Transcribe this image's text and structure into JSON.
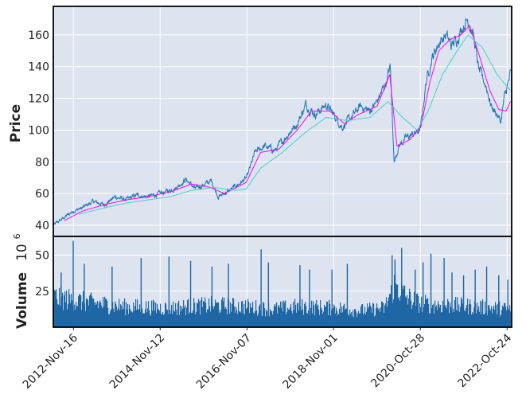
{
  "chart_data": [
    {
      "type": "line",
      "panel": "price",
      "ylabel": "Price",
      "ylim": [
        33,
        178
      ],
      "y_ticks": [
        40,
        60,
        80,
        100,
        120,
        140,
        160
      ],
      "grid": true,
      "x_start": "2012-06-01",
      "x_end": "2022-12-01",
      "series": [
        {
          "color": "#1f77b4",
          "points": [
            [
              "2012-06-01",
              40
            ],
            [
              "2012-08-15",
              44
            ],
            [
              "2012-11-16",
              49
            ],
            [
              "2013-02-01",
              51
            ],
            [
              "2013-05-01",
              55
            ],
            [
              "2013-08-01",
              53
            ],
            [
              "2013-11-01",
              58
            ],
            [
              "2014-02-01",
              56
            ],
            [
              "2014-05-01",
              59
            ],
            [
              "2014-08-01",
              58
            ],
            [
              "2014-11-12",
              60
            ],
            [
              "2015-02-01",
              62
            ],
            [
              "2015-04-01",
              64
            ],
            [
              "2015-06-15",
              69
            ],
            [
              "2015-09-01",
              63
            ],
            [
              "2015-11-01",
              65
            ],
            [
              "2016-01-15",
              68
            ],
            [
              "2016-03-15",
              58
            ],
            [
              "2016-06-15",
              62
            ],
            [
              "2016-09-01",
              66
            ],
            [
              "2016-11-07",
              70
            ],
            [
              "2017-01-15",
              86
            ],
            [
              "2017-04-01",
              90
            ],
            [
              "2017-07-01",
              87
            ],
            [
              "2017-10-01",
              96
            ],
            [
              "2018-01-01",
              104
            ],
            [
              "2018-03-15",
              116
            ],
            [
              "2018-06-01",
              110
            ],
            [
              "2018-09-01",
              116
            ],
            [
              "2018-11-01",
              110
            ],
            [
              "2019-01-15",
              102
            ],
            [
              "2019-04-01",
              108
            ],
            [
              "2019-06-15",
              115
            ],
            [
              "2019-09-01",
              112
            ],
            [
              "2019-11-01",
              118
            ],
            [
              "2020-01-15",
              130
            ],
            [
              "2020-02-20",
              140
            ],
            [
              "2020-03-23",
              80
            ],
            [
              "2020-05-01",
              90
            ],
            [
              "2020-07-01",
              95
            ],
            [
              "2020-10-28",
              100
            ],
            [
              "2020-12-15",
              130
            ],
            [
              "2021-02-01",
              145
            ],
            [
              "2021-04-01",
              155
            ],
            [
              "2021-06-01",
              160
            ],
            [
              "2021-07-15",
              153
            ],
            [
              "2021-09-01",
              158
            ],
            [
              "2021-10-15",
              165
            ],
            [
              "2021-12-01",
              170
            ],
            [
              "2022-01-15",
              160
            ],
            [
              "2022-03-01",
              138
            ],
            [
              "2022-05-01",
              128
            ],
            [
              "2022-06-15",
              115
            ],
            [
              "2022-08-01",
              110
            ],
            [
              "2022-09-01",
              105
            ],
            [
              "2022-10-01",
              120
            ],
            [
              "2022-11-20",
              135
            ]
          ]
        },
        {
          "color": "#ff00ff",
          "points": [
            [
              "2012-09-01",
              43
            ],
            [
              "2013-02-01",
              49
            ],
            [
              "2013-08-01",
              53
            ],
            [
              "2014-02-01",
              56
            ],
            [
              "2014-08-01",
              58
            ],
            [
              "2015-02-01",
              61
            ],
            [
              "2015-08-01",
              66
            ],
            [
              "2016-01-01",
              64
            ],
            [
              "2016-05-01",
              60
            ],
            [
              "2016-11-01",
              67
            ],
            [
              "2017-03-01",
              86
            ],
            [
              "2017-08-01",
              88
            ],
            [
              "2018-01-01",
              100
            ],
            [
              "2018-05-01",
              112
            ],
            [
              "2018-10-01",
              112
            ],
            [
              "2019-02-01",
              104
            ],
            [
              "2019-06-01",
              110
            ],
            [
              "2019-11-01",
              115
            ],
            [
              "2020-02-15",
              135
            ],
            [
              "2020-04-15",
              90
            ],
            [
              "2020-08-01",
              94
            ],
            [
              "2020-11-01",
              102
            ],
            [
              "2021-01-15",
              130
            ],
            [
              "2021-04-01",
              150
            ],
            [
              "2021-07-01",
              157
            ],
            [
              "2021-10-01",
              160
            ],
            [
              "2021-12-15",
              166
            ],
            [
              "2022-03-01",
              148
            ],
            [
              "2022-06-01",
              125
            ],
            [
              "2022-08-15",
              113
            ],
            [
              "2022-10-15",
              112
            ],
            [
              "2022-11-20",
              118
            ]
          ]
        },
        {
          "color": "#48d1cc",
          "points": [
            [
              "2013-01-01",
              47
            ],
            [
              "2013-08-01",
              51
            ],
            [
              "2014-02-01",
              54
            ],
            [
              "2014-08-01",
              56
            ],
            [
              "2015-02-01",
              58
            ],
            [
              "2015-08-01",
              62
            ],
            [
              "2016-02-01",
              64
            ],
            [
              "2016-08-01",
              62
            ],
            [
              "2016-11-01",
              63
            ],
            [
              "2017-03-01",
              76
            ],
            [
              "2017-09-01",
              86
            ],
            [
              "2018-03-01",
              98
            ],
            [
              "2018-09-01",
              108
            ],
            [
              "2019-03-01",
              106
            ],
            [
              "2019-09-01",
              108
            ],
            [
              "2020-02-01",
              118
            ],
            [
              "2020-06-01",
              108
            ],
            [
              "2020-10-01",
              100
            ],
            [
              "2021-01-01",
              112
            ],
            [
              "2021-05-01",
              135
            ],
            [
              "2021-09-01",
              150
            ],
            [
              "2021-12-01",
              160
            ],
            [
              "2022-04-01",
              152
            ],
            [
              "2022-08-01",
              135
            ],
            [
              "2022-11-20",
              125
            ]
          ]
        }
      ]
    },
    {
      "type": "bar",
      "panel": "volume",
      "ylabel": "Volume",
      "y_multiplier_label": "10",
      "y_multiplier_exp": "6",
      "ylim": [
        0,
        63
      ],
      "y_ticks": [
        25,
        50
      ],
      "grid": true,
      "color": "#1f67a4",
      "volume_level": [
        [
          "2012-06-01",
          22
        ],
        [
          "2013-01-01",
          19
        ],
        [
          "2014-01-01",
          15
        ],
        [
          "2015-01-01",
          14
        ],
        [
          "2016-01-01",
          16
        ],
        [
          "2016-11-01",
          15
        ],
        [
          "2017-06-01",
          13
        ],
        [
          "2018-01-01",
          15
        ],
        [
          "2018-11-01",
          14
        ],
        [
          "2019-06-01",
          12
        ],
        [
          "2020-01-01",
          14
        ],
        [
          "2020-03-23",
          32
        ],
        [
          "2020-07-01",
          22
        ],
        [
          "2020-10-28",
          17
        ],
        [
          "2021-06-01",
          16
        ],
        [
          "2022-01-01",
          15
        ],
        [
          "2022-11-20",
          13
        ]
      ],
      "volume_spikes": [
        [
          "2012-08-01",
          38
        ],
        [
          "2012-11-10",
          60
        ],
        [
          "2013-02-10",
          44
        ],
        [
          "2013-10-01",
          42
        ],
        [
          "2014-06-01",
          48
        ],
        [
          "2015-01-20",
          49
        ],
        [
          "2015-07-20",
          46
        ],
        [
          "2016-01-15",
          42
        ],
        [
          "2016-06-01",
          44
        ],
        [
          "2017-03-01",
          54
        ],
        [
          "2017-05-01",
          45
        ],
        [
          "2018-01-20",
          43
        ],
        [
          "2018-04-10",
          40
        ],
        [
          "2018-10-15",
          40
        ],
        [
          "2019-02-20",
          44
        ],
        [
          "2020-03-01",
          50
        ],
        [
          "2020-03-25",
          47
        ],
        [
          "2020-05-20",
          55
        ],
        [
          "2020-09-10",
          40
        ],
        [
          "2020-11-15",
          45
        ],
        [
          "2021-01-20",
          51
        ],
        [
          "2021-05-10",
          48
        ],
        [
          "2021-07-15",
          38
        ],
        [
          "2021-10-20",
          36
        ],
        [
          "2022-01-25",
          40
        ],
        [
          "2022-05-01",
          42
        ],
        [
          "2022-08-10",
          36
        ],
        [
          "2022-10-25",
          33
        ]
      ]
    }
  ],
  "x_ticks": [
    {
      "date": "2012-11-16",
      "label": "2012-Nov-16"
    },
    {
      "date": "2014-11-12",
      "label": "2014-Nov-12"
    },
    {
      "date": "2016-11-07",
      "label": "2016-Nov-07"
    },
    {
      "date": "2018-11-01",
      "label": "2018-Nov-01"
    },
    {
      "date": "2020-10-28",
      "label": "2020-Oct-28"
    },
    {
      "date": "2022-10-24",
      "label": "2022-Oct-24"
    }
  ]
}
